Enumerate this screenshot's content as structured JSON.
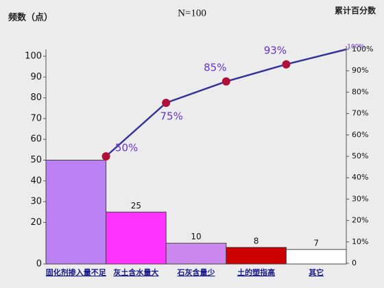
{
  "chart_data": {
    "type": "pareto",
    "title": "N=100",
    "y_label": "频数（点）",
    "y2_label": "累计百分数",
    "categories": [
      "固化剂掺入量不足",
      "灰土含水量大",
      "石灰含量少",
      "土的塑指高",
      "其它"
    ],
    "series": [
      {
        "values": [
          50,
          25,
          10,
          8,
          7
        ],
        "value_labels": [
          null,
          "25",
          "10",
          "8",
          "7"
        ],
        "colors": [
          "#bb80f2",
          "#ff33ff",
          "#cc88ee",
          "#cc0000",
          "#ffffff"
        ]
      },
      {
        "values": [
          50,
          75,
          85,
          93,
          100
        ],
        "value_labels": [
          "50%",
          "75%",
          "85%",
          "93%",
          "100%"
        ],
        "axis": "y2",
        "color": "#333399",
        "marker_color": "#b0103a"
      }
    ],
    "ylim": [
      0,
      100
    ],
    "yticks": [
      0,
      20,
      30,
      40,
      50,
      60,
      70,
      80,
      90,
      100
    ],
    "y2lim": [
      0,
      100
    ],
    "y2ticks": [
      0,
      {
        "value": 10,
        "label": "10%"
      },
      {
        "value": 20,
        "label": "20%"
      },
      {
        "value": 30,
        "label": "30%"
      },
      {
        "value": 40,
        "label": "40%"
      },
      {
        "value": 50,
        "label": "50%"
      },
      {
        "value": 60,
        "label": "60%"
      },
      {
        "value": 70,
        "label": "70%"
      },
      {
        "value": 80,
        "label": "80%"
      },
      {
        "value": 90,
        "label": "90%"
      },
      {
        "value": 100,
        "label": "100%"
      }
    ]
  }
}
